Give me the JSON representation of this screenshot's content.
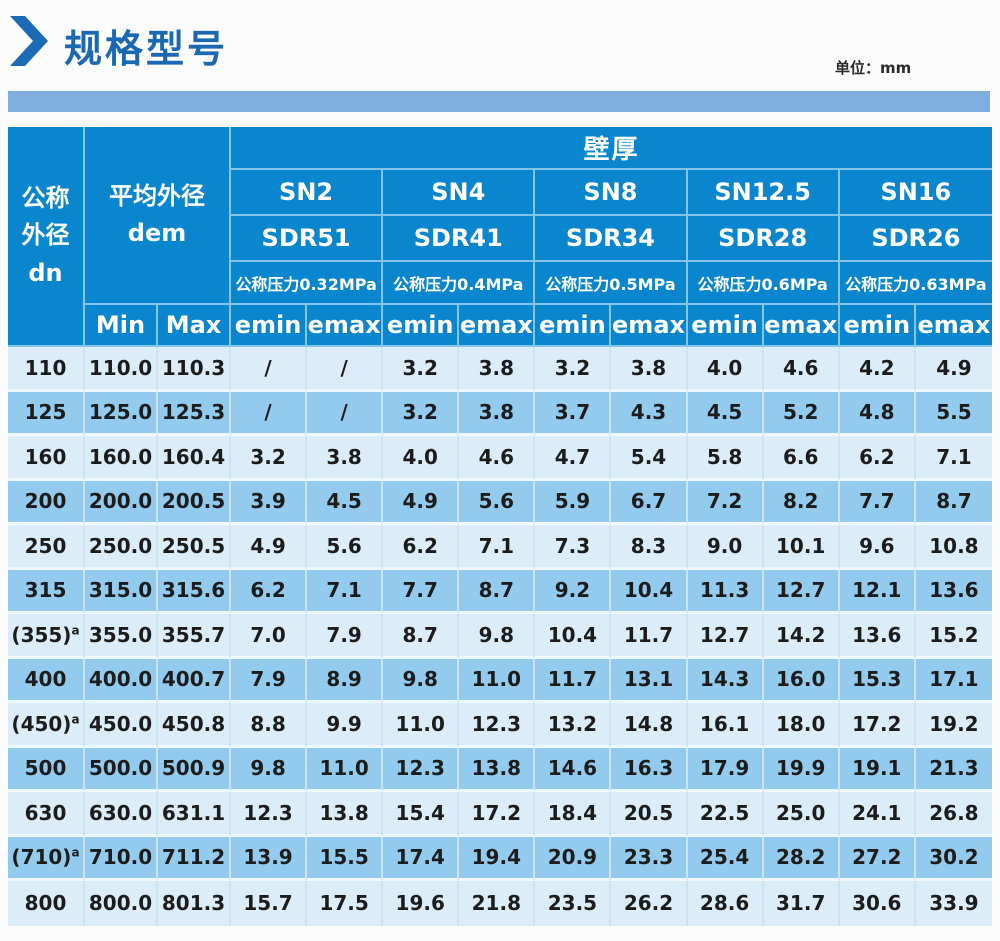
{
  "page": {
    "title": "规格型号",
    "unit_label": "单位：mm"
  },
  "colors": {
    "header_blue": "#0a86ce",
    "title_blue": "#1a67b2",
    "bar_blue": "#7faedd",
    "row_light": "#daedf9",
    "row_medium": "#93cbee"
  },
  "table": {
    "dn_header": "公称\n外径\ndn",
    "dem_header": "平均外径\ndem",
    "wall_header": "壁厚",
    "groups": [
      {
        "sn": "SN2",
        "sdr": "SDR51",
        "pressure": "公称压力0.32MPa"
      },
      {
        "sn": "SN4",
        "sdr": "SDR41",
        "pressure": "公称压力0.4MPa"
      },
      {
        "sn": "SN8",
        "sdr": "SDR34",
        "pressure": "公称压力0.5MPa"
      },
      {
        "sn": "SN12.5",
        "sdr": "SDR28",
        "pressure": "公称压力0.6MPa"
      },
      {
        "sn": "SN16",
        "sdr": "SDR26",
        "pressure": "公称压力0.63MPa"
      }
    ],
    "sub": {
      "min": "Min",
      "max": "Max",
      "emin": "emin",
      "emax": "emax"
    },
    "rows": [
      {
        "dn": "110",
        "sup": "",
        "min": "110.0",
        "max": "110.3",
        "values": [
          "/",
          "/",
          "3.2",
          "3.8",
          "3.2",
          "3.8",
          "4.0",
          "4.6",
          "4.2",
          "4.9"
        ]
      },
      {
        "dn": "125",
        "sup": "",
        "min": "125.0",
        "max": "125.3",
        "values": [
          "/",
          "/",
          "3.2",
          "3.8",
          "3.7",
          "4.3",
          "4.5",
          "5.2",
          "4.8",
          "5.5"
        ]
      },
      {
        "dn": "160",
        "sup": "",
        "min": "160.0",
        "max": "160.4",
        "values": [
          "3.2",
          "3.8",
          "4.0",
          "4.6",
          "4.7",
          "5.4",
          "5.8",
          "6.6",
          "6.2",
          "7.1"
        ]
      },
      {
        "dn": "200",
        "sup": "",
        "min": "200.0",
        "max": "200.5",
        "values": [
          "3.9",
          "4.5",
          "4.9",
          "5.6",
          "5.9",
          "6.7",
          "7.2",
          "8.2",
          "7.7",
          "8.7"
        ]
      },
      {
        "dn": "250",
        "sup": "",
        "min": "250.0",
        "max": "250.5",
        "values": [
          "4.9",
          "5.6",
          "6.2",
          "7.1",
          "7.3",
          "8.3",
          "9.0",
          "10.1",
          "9.6",
          "10.8"
        ]
      },
      {
        "dn": "315",
        "sup": "",
        "min": "315.0",
        "max": "315.6",
        "values": [
          "6.2",
          "7.1",
          "7.7",
          "8.7",
          "9.2",
          "10.4",
          "11.3",
          "12.7",
          "12.1",
          "13.6"
        ]
      },
      {
        "dn": "(355)",
        "sup": "a",
        "min": "355.0",
        "max": "355.7",
        "values": [
          "7.0",
          "7.9",
          "8.7",
          "9.8",
          "10.4",
          "11.7",
          "12.7",
          "14.2",
          "13.6",
          "15.2"
        ]
      },
      {
        "dn": "400",
        "sup": "",
        "min": "400.0",
        "max": "400.7",
        "values": [
          "7.9",
          "8.9",
          "9.8",
          "11.0",
          "11.7",
          "13.1",
          "14.3",
          "16.0",
          "15.3",
          "17.1"
        ]
      },
      {
        "dn": "(450)",
        "sup": "a",
        "min": "450.0",
        "max": "450.8",
        "values": [
          "8.8",
          "9.9",
          "11.0",
          "12.3",
          "13.2",
          "14.8",
          "16.1",
          "18.0",
          "17.2",
          "19.2"
        ]
      },
      {
        "dn": "500",
        "sup": "",
        "min": "500.0",
        "max": "500.9",
        "values": [
          "9.8",
          "11.0",
          "12.3",
          "13.8",
          "14.6",
          "16.3",
          "17.9",
          "19.9",
          "19.1",
          "21.3"
        ]
      },
      {
        "dn": "630",
        "sup": "",
        "min": "630.0",
        "max": "631.1",
        "values": [
          "12.3",
          "13.8",
          "15.4",
          "17.2",
          "18.4",
          "20.5",
          "22.5",
          "25.0",
          "24.1",
          "26.8"
        ]
      },
      {
        "dn": "(710)",
        "sup": "a",
        "min": "710.0",
        "max": "711.2",
        "values": [
          "13.9",
          "15.5",
          "17.4",
          "19.4",
          "20.9",
          "23.3",
          "25.4",
          "28.2",
          "27.2",
          "30.2"
        ]
      },
      {
        "dn": "800",
        "sup": "",
        "min": "800.0",
        "max": "801.3",
        "values": [
          "15.7",
          "17.5",
          "19.6",
          "21.8",
          "23.5",
          "26.2",
          "28.6",
          "31.7",
          "30.6",
          "33.9"
        ]
      }
    ]
  }
}
